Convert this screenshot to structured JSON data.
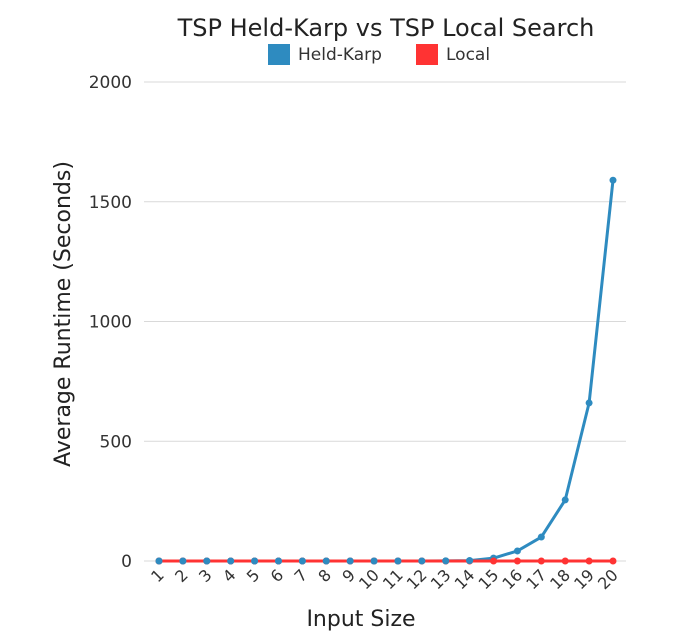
{
  "chart_data": {
    "type": "line",
    "title": "TSP Held-Karp vs TSP Local Search",
    "xlabel": "Input Size",
    "ylabel": "Average Runtime (Seconds)",
    "categories": [
      "1",
      "2",
      "3",
      "4",
      "5",
      "6",
      "7",
      "8",
      "9",
      "10",
      "11",
      "12",
      "13",
      "14",
      "15",
      "16",
      "17",
      "18",
      "19",
      "20"
    ],
    "yticks": [
      "0",
      "500",
      "1000",
      "1500",
      "2000"
    ],
    "ylim": [
      0,
      2000
    ],
    "grid": true,
    "legend_position": "top",
    "series": [
      {
        "name": "Held-Karp",
        "color": "#2e8bc0",
        "values": [
          0,
          0,
          0,
          0,
          0,
          0,
          0,
          0,
          0,
          0,
          0,
          0.2,
          0.5,
          1.5,
          12,
          42,
          100,
          255,
          660,
          1590
        ]
      },
      {
        "name": "Local",
        "color": "#ff3333",
        "values": [
          0,
          0,
          0,
          0,
          0,
          0,
          0,
          0,
          0,
          0,
          0,
          0,
          0,
          0,
          0,
          0,
          0,
          0,
          0,
          0
        ]
      }
    ]
  }
}
